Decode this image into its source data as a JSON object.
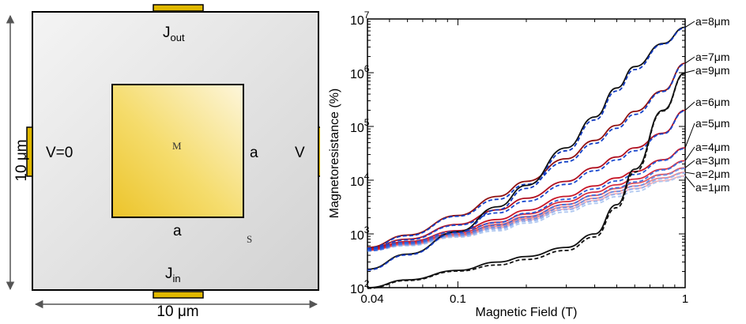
{
  "device": {
    "outer_width_label": "10 μm",
    "outer_height_label": "10 μm",
    "current_out_label": {
      "main": "J",
      "sub": "out"
    },
    "current_in_label": {
      "main": "J",
      "sub": "in"
    },
    "voltage_left_label": "V=0",
    "voltage_right_label": "V",
    "metal_label": "M",
    "semiconductor_label": "S",
    "inner_width_label": "a",
    "inner_height_label": "a",
    "colors": {
      "substrate": "#e4e4e4",
      "metal": "#f0d040",
      "contact": "#e0b800",
      "outline": "#000000"
    }
  },
  "chart_data": {
    "type": "line",
    "x_scale": "log",
    "y_scale": "log",
    "xlabel": "Magnetic Field (T)",
    "ylabel": "Magnetoresistance (%)",
    "xlim": [
      0.04,
      1
    ],
    "ylim": [
      100,
      10000000
    ],
    "x_ticks": [
      {
        "value": 0.04,
        "label": "0.04"
      },
      {
        "value": 0.1,
        "label": "0.1"
      },
      {
        "value": 1,
        "label": "1"
      }
    ],
    "y_ticks": [
      {
        "value": 100,
        "base": "10",
        "exp": "2"
      },
      {
        "value": 1000,
        "base": "10",
        "exp": "3"
      },
      {
        "value": 10000,
        "base": "10",
        "exp": "4"
      },
      {
        "value": 100000,
        "base": "10",
        "exp": "5"
      },
      {
        "value": 1000000,
        "base": "10",
        "exp": "6"
      },
      {
        "value": 10000000,
        "base": "10",
        "exp": "7"
      }
    ],
    "x_sample": [
      0.04,
      0.06,
      0.1,
      0.15,
      0.2,
      0.3,
      0.4,
      0.5,
      0.6,
      0.8,
      1.0
    ],
    "series": [
      {
        "name": "a=1μm",
        "color": "#f4b0b8",
        "dashed": "#b0c8f0",
        "values": [
          500,
          620,
          900,
          1300,
          1800,
          2900,
          4200,
          5600,
          7000,
          9800,
          12000
        ]
      },
      {
        "name": "a=2μm",
        "color": "#e88890",
        "dashed": "#90b0f0",
        "values": [
          500,
          640,
          940,
          1400,
          1950,
          3200,
          4600,
          6200,
          7800,
          11000,
          14000
        ]
      },
      {
        "name": "a=3μm",
        "color": "#e05a64",
        "dashed": "#6890e8",
        "values": [
          500,
          660,
          980,
          1500,
          2100,
          3550,
          5200,
          7000,
          8800,
          12800,
          17000
        ]
      },
      {
        "name": "a=4μm",
        "color": "#d83040",
        "dashed": "#4070e0",
        "values": [
          500,
          680,
          1050,
          1650,
          2350,
          4000,
          6000,
          8200,
          10500,
          16000,
          23000
        ]
      },
      {
        "name": "a=5μm",
        "color": "#c81828",
        "dashed": "#2858d8",
        "values": [
          520,
          720,
          1150,
          1850,
          2750,
          5000,
          7800,
          11000,
          14500,
          24000,
          40000
        ]
      },
      {
        "name": "a=6μm",
        "color": "#b01020",
        "dashed": "#1848d0",
        "values": [
          540,
          800,
          1500,
          2800,
          4600,
          9500,
          17000,
          27000,
          40000,
          75000,
          200000
        ]
      },
      {
        "name": "a=7μm",
        "color": "#901010",
        "dashed": "#1040c8",
        "values": [
          560,
          950,
          2200,
          5000,
          9500,
          25000,
          55000,
          105000,
          190000,
          460000,
          1500000
        ]
      },
      {
        "name": "a=8μm",
        "color": "#101010",
        "dashed": "#1038c0",
        "values": [
          220,
          420,
          1100,
          3200,
          8000,
          40000,
          150000,
          520000,
          1300000,
          3500000,
          7000000
        ]
      },
      {
        "name": "a=9μm",
        "color": "#101010",
        "dashed": "#101010",
        "values": [
          100,
          140,
          210,
          300,
          380,
          560,
          1000,
          3500,
          16000,
          200000,
          1000000
        ]
      }
    ],
    "legend": "right-of-plot"
  }
}
